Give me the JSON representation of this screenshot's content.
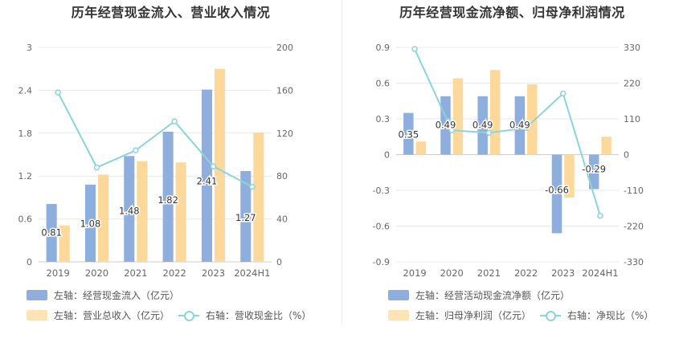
{
  "colors": {
    "bar_left": "#8eaedd",
    "bar_right": "#fcd99b",
    "line": "#8ad4dc"
  },
  "chart_data": [
    {
      "type": "bar",
      "title": "历年经营现金流入、营业收入情况",
      "categories": [
        "2019",
        "2020",
        "2021",
        "2022",
        "2023",
        "2024H1"
      ],
      "left_axis": {
        "ticks": [
          "0",
          "0.6",
          "1.2",
          "1.8",
          "2.4",
          "3"
        ],
        "ylim": [
          0,
          3
        ]
      },
      "right_axis": {
        "ticks": [
          "0",
          "40",
          "80",
          "120",
          "160",
          "200"
        ],
        "ylim": [
          0,
          200
        ]
      },
      "series": [
        {
          "name": "左轴：经营现金流入（亿元）",
          "axis": "left",
          "kind": "bar",
          "values": [
            0.81,
            1.08,
            1.48,
            1.82,
            2.41,
            1.27
          ],
          "labels": [
            "0.81",
            "1.08",
            "1.48",
            "1.82",
            "2.41",
            "1.27"
          ]
        },
        {
          "name": "左轴：营业总收入（亿元）",
          "axis": "left",
          "kind": "bar",
          "values": [
            0.51,
            1.22,
            1.41,
            1.39,
            2.7,
            1.81
          ]
        },
        {
          "name": "右轴：营收现金比（%）",
          "axis": "right",
          "kind": "line",
          "values": [
            158,
            88,
            104,
            131,
            89,
            70
          ]
        }
      ]
    },
    {
      "type": "bar",
      "title": "历年经营现金流净额、归母净利润情况",
      "categories": [
        "2019",
        "2020",
        "2021",
        "2022",
        "2023",
        "2024H1"
      ],
      "left_axis": {
        "ticks": [
          "0.9",
          "0.6",
          "0.3",
          "0",
          "-0.3",
          "-0.6",
          "-0.9"
        ],
        "ylim": [
          -0.9,
          0.9
        ]
      },
      "right_axis": {
        "ticks": [
          "330",
          "220",
          "110",
          "0",
          "-110",
          "-220",
          "-330"
        ],
        "ylim": [
          -330,
          330
        ]
      },
      "series": [
        {
          "name": "左轴：经营活动现金流净额（亿元）",
          "axis": "left",
          "kind": "bar",
          "values": [
            0.35,
            0.49,
            0.49,
            0.49,
            -0.66,
            -0.29
          ],
          "labels": [
            "0.35",
            "0.49",
            "0.49",
            "0.49",
            "-0.66",
            "-0.29"
          ]
        },
        {
          "name": "左轴：归母净利润（亿元）",
          "axis": "left",
          "kind": "bar",
          "values": [
            0.11,
            0.64,
            0.71,
            0.59,
            -0.36,
            0.15
          ]
        },
        {
          "name": "右轴：净现比（%）",
          "axis": "right",
          "kind": "line",
          "values": [
            325,
            75,
            67,
            82,
            188,
            -188
          ]
        }
      ]
    }
  ]
}
